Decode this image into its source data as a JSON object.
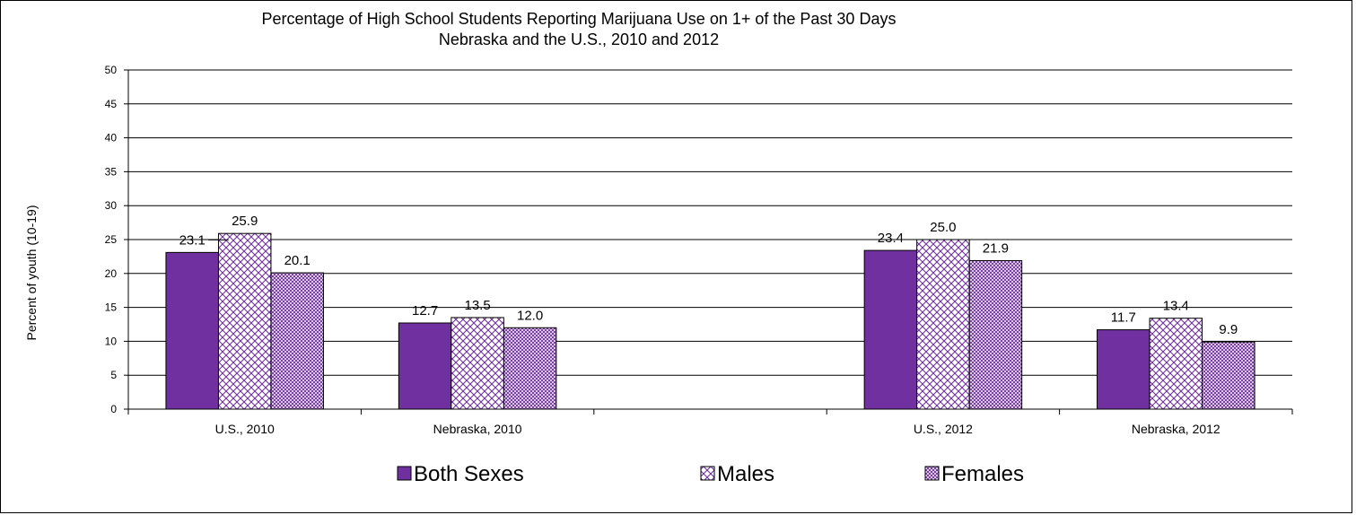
{
  "chart_data": {
    "type": "bar",
    "title": "Percentage of High School Students Reporting Marijuana Use on 1+ of the Past 30 Days",
    "subtitle": "Nebraska and the U.S., 2010 and 2012",
    "ylabel": "Percent of youth (10-19)",
    "xlabel": "",
    "ylim": [
      0,
      50
    ],
    "ytick_step": 5,
    "grid": true,
    "legend_placement": "bottom",
    "categories": [
      "U.S., 2010",
      "Nebraska, 2010",
      "",
      "U.S., 2012",
      "Nebraska, 2012"
    ],
    "series": [
      {
        "name": "Both Sexes",
        "values": [
          23.1,
          12.7,
          null,
          23.4,
          11.7
        ],
        "labels": [
          "23.1",
          "12.7",
          "",
          "23.4",
          "11.7"
        ],
        "color": "#7030A0",
        "pattern": "solid"
      },
      {
        "name": "Males",
        "values": [
          25.9,
          13.5,
          null,
          25.0,
          13.4
        ],
        "labels": [
          "25.9",
          "13.5",
          "",
          "25.0",
          "13.4"
        ],
        "color": "#7030A0",
        "pattern": "large-check"
      },
      {
        "name": "Females",
        "values": [
          20.1,
          12.0,
          null,
          21.9,
          9.9
        ],
        "labels": [
          "20.1",
          "12.0",
          "",
          "21.9",
          "9.9"
        ],
        "color": "#7030A0",
        "pattern": "small-check"
      }
    ]
  }
}
